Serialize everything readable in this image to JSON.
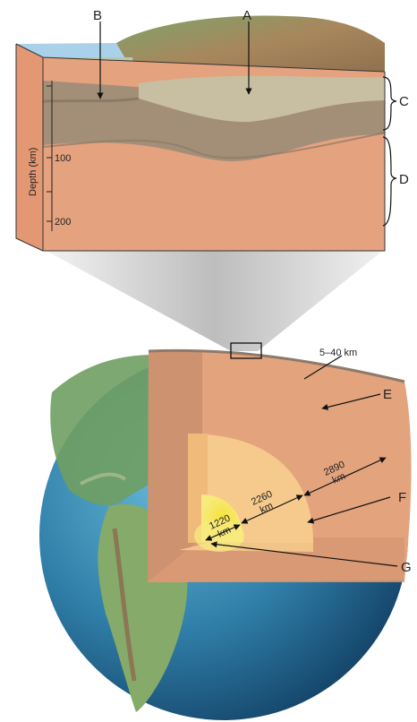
{
  "labels": {
    "A": "A",
    "B": "B",
    "C": "C",
    "D": "D",
    "E": "E",
    "F": "F",
    "G": "G"
  },
  "depth_axis": {
    "title": "Depth (km)",
    "ticks": [
      "100",
      "200"
    ]
  },
  "dimensions": {
    "crust": "5–40 km",
    "mantle_value": "2890",
    "outer_core_value": "2260",
    "inner_core_value": "1220",
    "unit": "km"
  },
  "colors": {
    "ocean": "#a9d1ea",
    "crust": "#c8bea1",
    "lithosphere_mantle": "#a38f78",
    "asthenosphere": "#e5a27f",
    "mantle_cut": "#e3a37d",
    "outer_core": "#f6c98c",
    "inner_core_glow": "#f7e56a",
    "inner_core": "#f1e13a",
    "globe_ocean": "#2f7ea8"
  }
}
